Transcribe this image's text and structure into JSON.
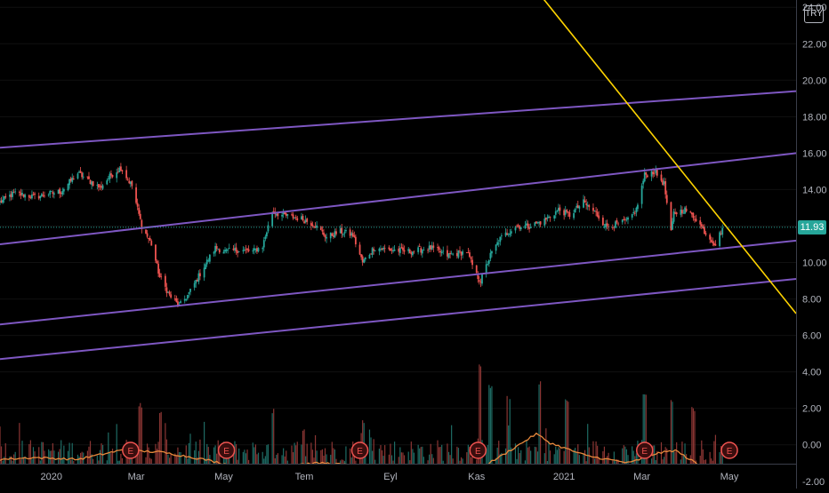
{
  "chart_data": {
    "type": "candlestick",
    "currency": "TRY",
    "last_price": "11.93",
    "colors": {
      "up": "#26a69a",
      "down": "#ef5350",
      "channel": "#7e57c2",
      "trendline": "#ffd400",
      "volume_ma": "#e8893c"
    },
    "y_axis": {
      "ticks": [
        "24.00",
        "22.00",
        "20.00",
        "18.00",
        "16.00",
        "14.00",
        "12.00",
        "10.00",
        "8.00",
        "6.00",
        "4.00",
        "2.00",
        "0.00",
        "-2.00"
      ],
      "tick_values": [
        24,
        22,
        20,
        18,
        16,
        14,
        12,
        10,
        8,
        6,
        4,
        2,
        0,
        -2
      ],
      "price_range": [
        -2.4,
        24.4
      ]
    },
    "x_axis": {
      "labels": [
        "2020",
        "Mar",
        "May",
        "Tem",
        "Eyl",
        "Kas",
        "2021",
        "Mar",
        "May"
      ],
      "label_dates": [
        "2020-01-01",
        "2020-03-02",
        "2020-05-04",
        "2020-07-01",
        "2020-09-01",
        "2020-11-02",
        "2021-01-04",
        "2021-03-01",
        "2021-05-03"
      ],
      "range": [
        "2019-11-25",
        "2021-06-20"
      ]
    },
    "price_anchors": [
      [
        "2019-11-25",
        13.3
      ],
      [
        "2019-12-05",
        13.8
      ],
      [
        "2019-12-20",
        13.6
      ],
      [
        "2020-01-08",
        13.9
      ],
      [
        "2020-01-20",
        14.9
      ],
      [
        "2020-02-05",
        14.1
      ],
      [
        "2020-02-13",
        14.8
      ],
      [
        "2020-02-20",
        15.2
      ],
      [
        "2020-02-28",
        14.2
      ],
      [
        "2020-03-06",
        12.0
      ],
      [
        "2020-03-13",
        11.0
      ],
      [
        "2020-03-19",
        9.2
      ],
      [
        "2020-03-26",
        8.2
      ],
      [
        "2020-04-02",
        7.6
      ],
      [
        "2020-04-09",
        8.3
      ],
      [
        "2020-04-20",
        9.8
      ],
      [
        "2020-04-28",
        10.8
      ],
      [
        "2020-05-06",
        10.6
      ],
      [
        "2020-05-15",
        10.7
      ],
      [
        "2020-05-25",
        10.6
      ],
      [
        "2020-06-01",
        10.9
      ],
      [
        "2020-06-08",
        12.8
      ],
      [
        "2020-06-15",
        12.6
      ],
      [
        "2020-06-29",
        12.4
      ],
      [
        "2020-07-08",
        12.1
      ],
      [
        "2020-07-17",
        11.4
      ],
      [
        "2020-07-27",
        11.7
      ],
      [
        "2020-08-05",
        11.5
      ],
      [
        "2020-08-12",
        10.0
      ],
      [
        "2020-08-20",
        10.8
      ],
      [
        "2020-09-01",
        10.7
      ],
      [
        "2020-09-15",
        10.6
      ],
      [
        "2020-09-30",
        10.8
      ],
      [
        "2020-10-12",
        10.4
      ],
      [
        "2020-10-26",
        10.6
      ],
      [
        "2020-11-02",
        9.3
      ],
      [
        "2020-11-05",
        9.0
      ],
      [
        "2020-11-12",
        10.4
      ],
      [
        "2020-11-19",
        11.3
      ],
      [
        "2020-11-30",
        12.0
      ],
      [
        "2020-12-10",
        12.0
      ],
      [
        "2020-12-21",
        12.3
      ],
      [
        "2020-12-31",
        12.9
      ],
      [
        "2021-01-08",
        12.6
      ],
      [
        "2021-01-18",
        13.3
      ],
      [
        "2021-01-27",
        12.7
      ],
      [
        "2021-02-03",
        12.0
      ],
      [
        "2021-02-12",
        12.1
      ],
      [
        "2021-02-19",
        12.3
      ],
      [
        "2021-02-25",
        12.9
      ],
      [
        "2021-03-03",
        14.8
      ],
      [
        "2021-03-10",
        15.0
      ],
      [
        "2021-03-17",
        14.3
      ],
      [
        "2021-03-22",
        11.6
      ],
      [
        "2021-03-24",
        12.7
      ],
      [
        "2021-04-01",
        12.9
      ],
      [
        "2021-04-09",
        12.4
      ],
      [
        "2021-04-16",
        11.6
      ],
      [
        "2021-04-23",
        11.0
      ],
      [
        "2021-04-28",
        11.9
      ]
    ],
    "volume": {
      "events": [
        [
          "2020-03-05",
          2.3
        ],
        [
          "2020-03-20",
          2.0
        ],
        [
          "2020-06-08",
          2.0
        ],
        [
          "2020-08-12",
          1.4
        ],
        [
          "2020-11-04",
          4.6
        ],
        [
          "2020-11-12",
          3.3
        ],
        [
          "2020-11-25",
          2.8
        ],
        [
          "2020-12-18",
          3.5
        ],
        [
          "2021-01-06",
          2.6
        ],
        [
          "2021-03-03",
          2.9
        ],
        [
          "2021-03-22",
          2.6
        ],
        [
          "2021-04-07",
          2.1
        ]
      ],
      "ma_anchors": [
        [
          "2019-11-25",
          -0.8
        ],
        [
          "2019-12-20",
          -0.7
        ],
        [
          "2020-01-20",
          -0.8
        ],
        [
          "2020-02-20",
          -0.3
        ],
        [
          "2020-03-20",
          -0.4
        ],
        [
          "2020-04-20",
          -0.8
        ],
        [
          "2020-05-20",
          -1.3
        ],
        [
          "2020-06-15",
          -1.1
        ],
        [
          "2020-07-15",
          -1.0
        ],
        [
          "2020-08-15",
          -1.2
        ],
        [
          "2020-09-15",
          -1.4
        ],
        [
          "2020-10-15",
          -1.5
        ],
        [
          "2020-11-02",
          -1.4
        ],
        [
          "2020-11-20",
          -0.6
        ],
        [
          "2020-12-15",
          0.6
        ],
        [
          "2020-12-25",
          0.1
        ],
        [
          "2021-01-20",
          -0.6
        ],
        [
          "2021-02-20",
          -1.0
        ],
        [
          "2021-03-10",
          -0.5
        ],
        [
          "2021-03-25",
          -0.3
        ],
        [
          "2021-04-15",
          -1.3
        ],
        [
          "2021-04-28",
          -1.3
        ]
      ],
      "earnings_markers": [
        "2020-02-27",
        "2020-05-06",
        "2020-08-10",
        "2020-11-03",
        "2021-03-03",
        "2021-05-03"
      ],
      "earnings_label": "E"
    },
    "drawings": {
      "channel_lines": [
        {
          "start": [
            "2019-11-25",
            16.3
          ],
          "end": [
            "2021-06-20",
            19.4
          ]
        },
        {
          "start": [
            "2019-11-25",
            11.0
          ],
          "end": [
            "2021-06-20",
            16.0
          ]
        },
        {
          "start": [
            "2019-11-25",
            6.6
          ],
          "end": [
            "2021-06-20",
            11.2
          ]
        },
        {
          "start": [
            "2019-11-25",
            4.7
          ],
          "end": [
            "2021-06-20",
            9.1
          ]
        }
      ],
      "trendline": {
        "start": [
          "2020-12-05",
          25.9
        ],
        "end": [
          "2021-06-20",
          7.2
        ]
      }
    }
  }
}
